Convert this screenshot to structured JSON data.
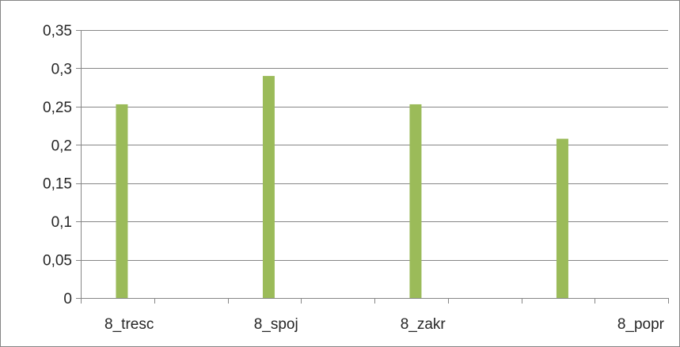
{
  "chart_data": {
    "type": "bar",
    "categories": [
      "8_tresc",
      "8_spoj",
      "8_zakr",
      "8_popr"
    ],
    "values": [
      0.253,
      0.29,
      0.253,
      0.208
    ],
    "title": "",
    "xlabel": "",
    "ylabel": "",
    "ylim": [
      0,
      0.35
    ],
    "yticks": [
      "0",
      "0,05",
      "0,1",
      "0,15",
      "0,2",
      "0,25",
      "0,3",
      "0,35"
    ],
    "grid": true,
    "legend": "none",
    "bar_color": "#9BBB59",
    "grid_color": "#868686"
  }
}
